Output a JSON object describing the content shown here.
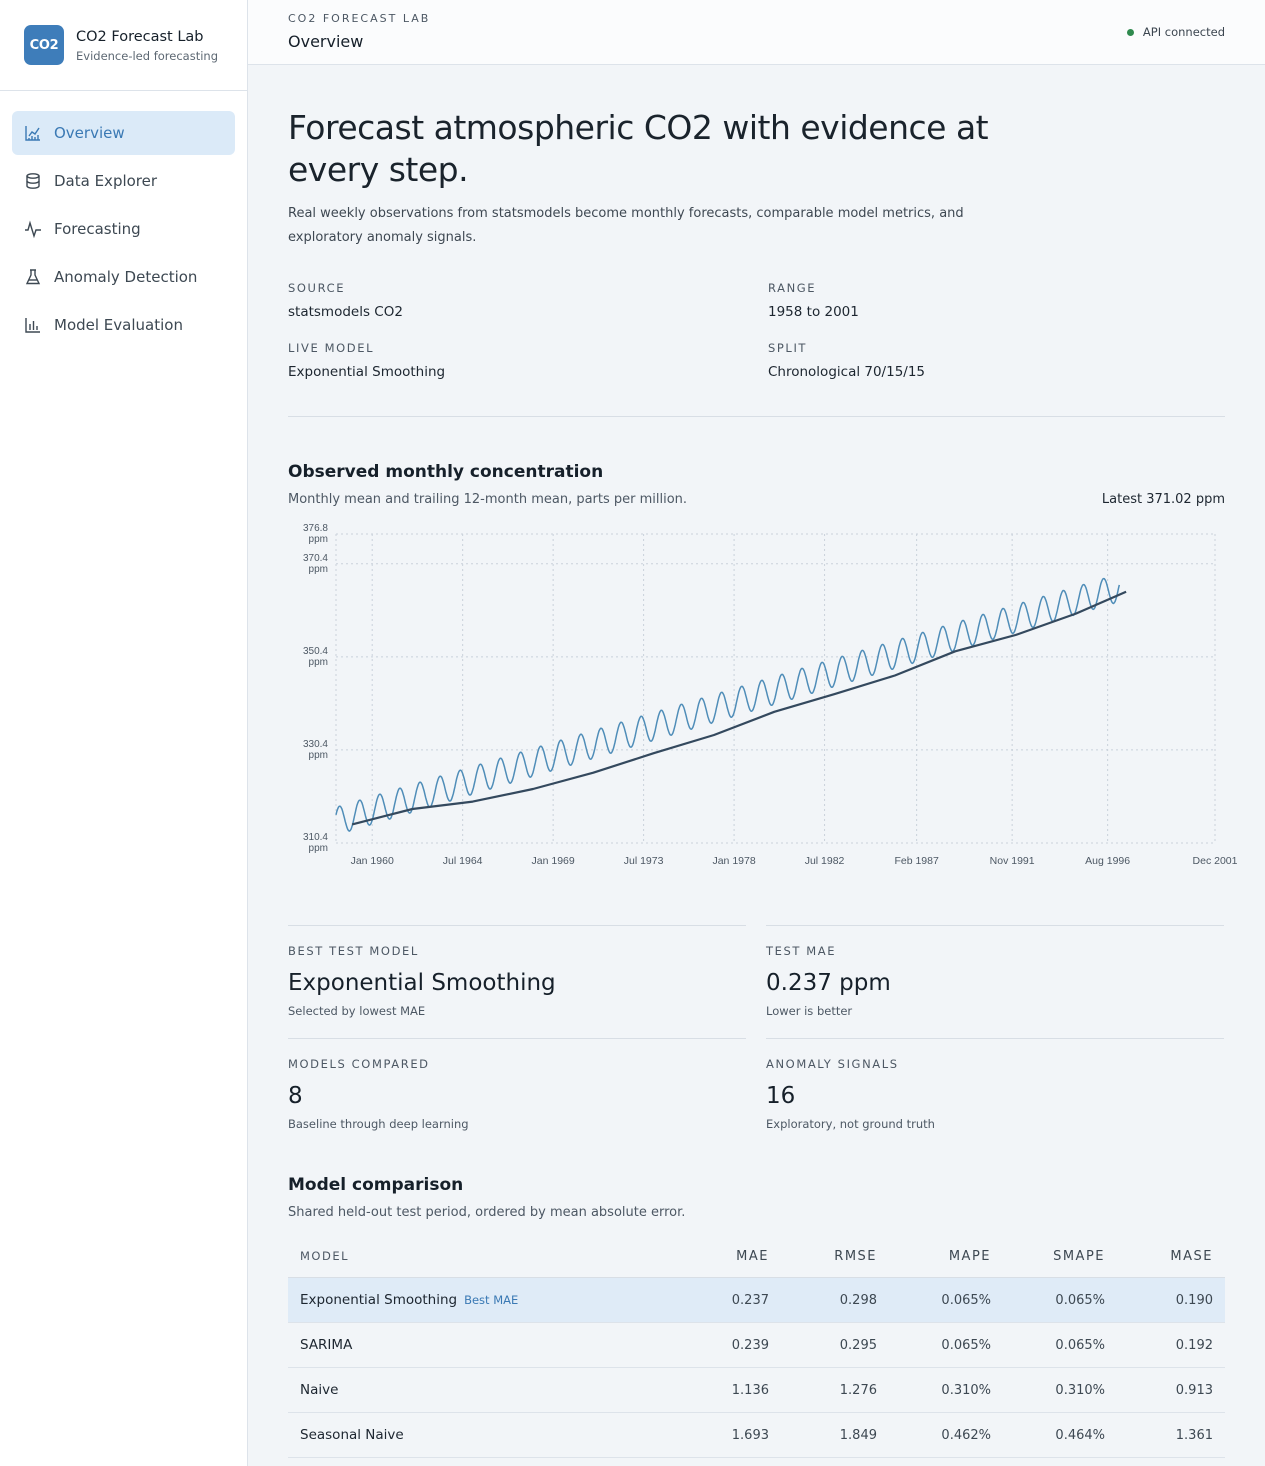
{
  "brand": {
    "logo": "CO2",
    "name": "CO2 Forecast Lab",
    "tagline": "Evidence-led forecasting"
  },
  "nav": [
    {
      "label": "Overview",
      "icon": "line-chart-icon",
      "active": true
    },
    {
      "label": "Data Explorer",
      "icon": "database-icon"
    },
    {
      "label": "Forecasting",
      "icon": "activity-icon"
    },
    {
      "label": "Anomaly Detection",
      "icon": "flask-icon"
    },
    {
      "label": "Model Evaluation",
      "icon": "bar-chart-icon"
    }
  ],
  "topbar": {
    "crumb": "CO2 FORECAST LAB",
    "title": "Overview",
    "status": "API connected",
    "status_color": "#2f8a4e"
  },
  "hero": {
    "title": "Forecast atmospheric CO2 with evidence at every step.",
    "description": "Real weekly observations from statsmodels become monthly forecasts, comparable model metrics, and exploratory anomaly signals."
  },
  "meta": {
    "source": {
      "label": "SOURCE",
      "value": "statsmodels CO2"
    },
    "range": {
      "label": "RANGE",
      "value": "1958 to 2001"
    },
    "live_model": {
      "label": "LIVE MODEL",
      "value": "Exponential Smoothing"
    },
    "split": {
      "label": "SPLIT",
      "value": "Chronological 70/15/15"
    }
  },
  "chart_section": {
    "title": "Observed monthly concentration",
    "subtitle": "Monthly mean and trailing 12-month mean, parts per million.",
    "latest": "Latest 371.02 ppm"
  },
  "chart_data": {
    "type": "line",
    "y_ticks": [
      {
        "value": 310.4,
        "label": "310.4",
        "unit": "ppm"
      },
      {
        "value": 330.4,
        "label": "330.4",
        "unit": "ppm"
      },
      {
        "value": 350.4,
        "label": "350.4",
        "unit": "ppm"
      },
      {
        "value": 370.4,
        "label": "370.4",
        "unit": "ppm"
      },
      {
        "value": 376.8,
        "label": "376.8",
        "unit": "ppm"
      }
    ],
    "x_ticks": [
      {
        "year": 1960.0,
        "label": "Jan 1960"
      },
      {
        "year": 1964.5,
        "label": "Jul 1964"
      },
      {
        "year": 1969.0,
        "label": "Jan 1969"
      },
      {
        "year": 1973.5,
        "label": "Jul 1973"
      },
      {
        "year": 1978.0,
        "label": "Jan 1978"
      },
      {
        "year": 1982.5,
        "label": "Jul 1982"
      },
      {
        "year": 1987.08,
        "label": "Feb 1987"
      },
      {
        "year": 1991.83,
        "label": "Nov 1991"
      },
      {
        "year": 1996.58,
        "label": "Aug 1996"
      },
      {
        "year": 2001.92,
        "label": "Dec 2001"
      }
    ],
    "xlim_year": [
      1958.2,
      2001.92
    ],
    "ylim": [
      310.4,
      376.8
    ],
    "grid": true,
    "series": [
      {
        "key": "monthly",
        "color": "#4f8db8",
        "description": "monthly mean, seasonal cycle",
        "trend": {
          "start_year": 1958.2,
          "end_year": 1997.2,
          "start_value": 315.1,
          "end_value": 365.3
        },
        "seasonal_amplitude": 3.0,
        "seasonal_peak_month": 5
      },
      {
        "key": "trailing",
        "color": "#34495e",
        "description": "trailing 12-month mean",
        "points": [
          [
            1959.0,
            314.4
          ],
          [
            1962.0,
            317.7
          ],
          [
            1965.0,
            319.3
          ],
          [
            1968.0,
            322.0
          ],
          [
            1971.0,
            325.5
          ],
          [
            1974.0,
            329.7
          ],
          [
            1977.0,
            333.6
          ],
          [
            1980.0,
            338.6
          ],
          [
            1983.0,
            342.4
          ],
          [
            1986.0,
            346.4
          ],
          [
            1989.0,
            351.6
          ],
          [
            1992.0,
            355.1
          ],
          [
            1995.0,
            359.7
          ],
          [
            1997.5,
            364.4
          ]
        ]
      }
    ]
  },
  "metrics": {
    "best_model": {
      "label": "BEST TEST MODEL",
      "value": "Exponential Smoothing",
      "note": "Selected by lowest MAE"
    },
    "test_mae": {
      "label": "TEST MAE",
      "value": "0.237 ppm",
      "note": "Lower is better"
    },
    "models_compared": {
      "label": "MODELS COMPARED",
      "value": "8",
      "note": "Baseline through deep learning"
    },
    "anomaly_signals": {
      "label": "ANOMALY SIGNALS",
      "value": "16",
      "note": "Exploratory, not ground truth"
    }
  },
  "comparison": {
    "title": "Model comparison",
    "subtitle": "Shared held-out test period, ordered by mean absolute error.",
    "headers": {
      "model": "MODEL",
      "mae": "MAE",
      "rmse": "RMSE",
      "mape": "MAPE",
      "smape": "SMAPE",
      "mase": "MASE"
    },
    "best_tag": "Best MAE",
    "rows": [
      {
        "model": "Exponential Smoothing",
        "mae": "0.237",
        "rmse": "0.298",
        "mape": "0.065%",
        "smape": "0.065%",
        "mase": "0.190"
      },
      {
        "model": "SARIMA",
        "mae": "0.239",
        "rmse": "0.295",
        "mape": "0.065%",
        "smape": "0.065%",
        "mase": "0.192"
      },
      {
        "model": "Naive",
        "mae": "1.136",
        "rmse": "1.276",
        "mape": "0.310%",
        "smape": "0.310%",
        "mase": "0.913"
      },
      {
        "model": "Seasonal Naive",
        "mae": "1.693",
        "rmse": "1.849",
        "mape": "0.462%",
        "smape": "0.464%",
        "mase": "1.361"
      }
    ]
  }
}
